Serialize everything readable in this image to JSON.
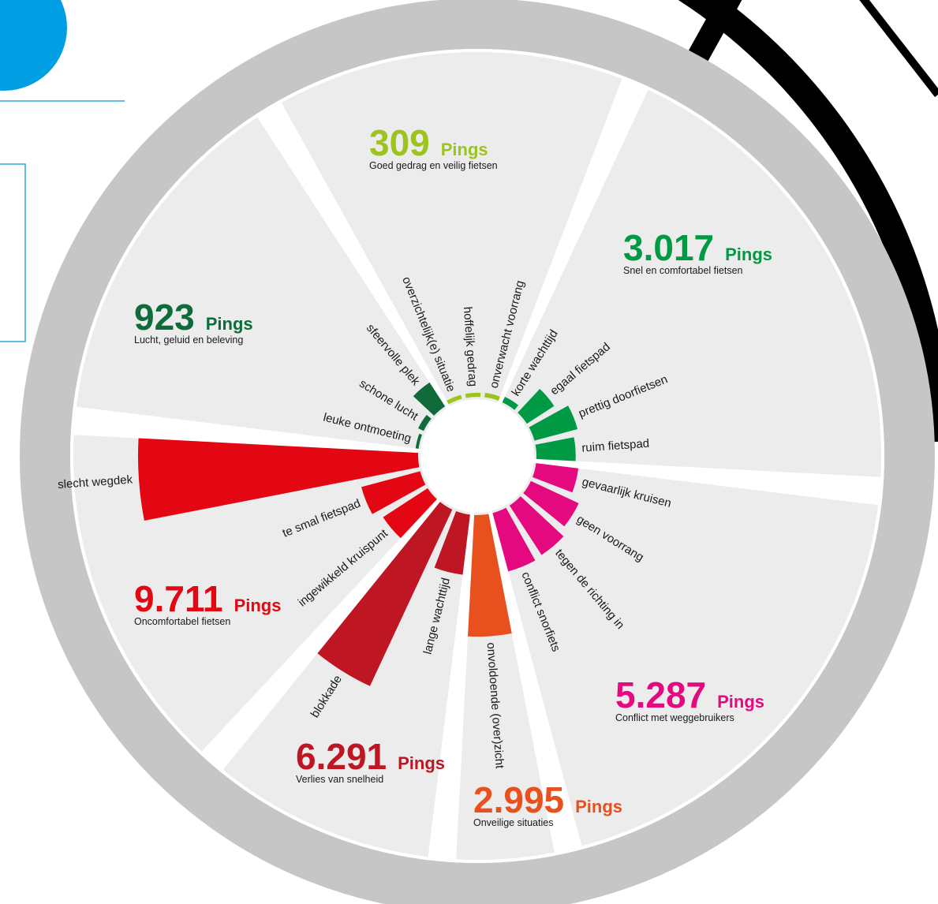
{
  "chart_data": {
    "type": "radial-bar",
    "unit": "Pings",
    "groups": [
      {
        "name": "Conflict met weggebruikers",
        "total": 5287,
        "total_label": "5.287",
        "color": "#e5097f",
        "categories": [
          "gevaarlijk kruisen",
          "geen voorrang",
          "tegen de richting in",
          "conflict snorfiets"
        ],
        "values": [
          1050,
          1300,
          1450,
          1487
        ]
      },
      {
        "name": "Onveilige situaties",
        "total": 2995,
        "total_label": "2.995",
        "color": "#e8501e",
        "categories": [
          "onvoldoende (over)zicht"
        ],
        "values": [
          2995
        ]
      },
      {
        "name": "Verlies van snelheid",
        "total": 6291,
        "total_label": "6.291",
        "color": "#be1622",
        "categories": [
          "lange wachttijd",
          "blokkade"
        ],
        "values": [
          1491,
          4800
        ]
      },
      {
        "name": "Oncomfortabel fietsen",
        "total": 9711,
        "total_label": "9.711",
        "color": "#e30613",
        "categories": [
          "ingewikkeld kruispunt",
          "te smal fietspad",
          "slecht wegdek"
        ],
        "values": [
          1311,
          1500,
          6900
        ]
      },
      {
        "name": "Lucht, geluid en beleving",
        "total": 923,
        "total_label": "923",
        "color": "#0f6b3a",
        "categories": [
          "leuke ontmoeting",
          "schone lucht",
          "sfeervolle plek"
        ],
        "values": [
          73,
          150,
          700
        ]
      },
      {
        "name": "Goed gedrag en veilig fietsen",
        "total": 309,
        "total_label": "309",
        "color": "#9dc41e",
        "categories": [
          "overzichtelijk(e) situatie",
          "hoffelijk gedrag",
          "onverwacht voorrang"
        ],
        "values": [
          100,
          99,
          110
        ]
      },
      {
        "name": "Snel en comfortabel  fietsen",
        "total": 3017,
        "total_label": "3.017",
        "color": "#009a44",
        "categories": [
          "korte wachttijd",
          "egaal fietspad",
          "prettig doorfietsen",
          "ruim fietspad"
        ],
        "values": [
          150,
          800,
          1100,
          967
        ]
      }
    ]
  }
}
